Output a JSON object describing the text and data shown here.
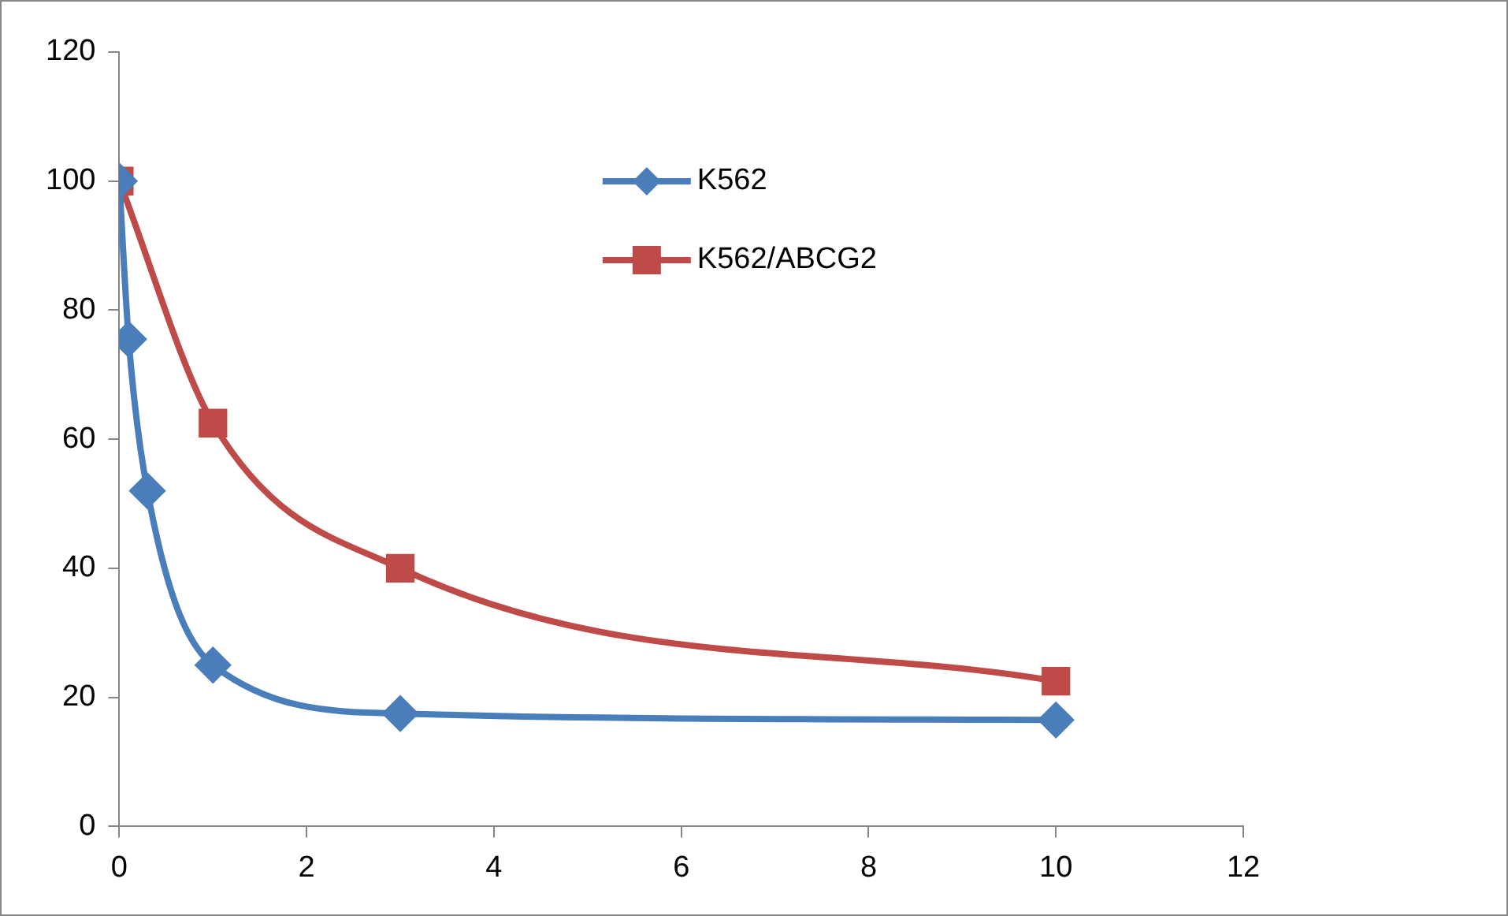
{
  "chart_data": {
    "type": "line",
    "xlim": [
      0,
      12
    ],
    "xticks": [
      0,
      2,
      4,
      6,
      8,
      10,
      12
    ],
    "ylim": [
      0,
      120
    ],
    "yticks": [
      0,
      20,
      40,
      60,
      80,
      100,
      120
    ],
    "grid": false,
    "legend": "top",
    "series": [
      {
        "name": "K562",
        "color": "#4a7ebb",
        "marker": "diamond",
        "x": [
          0,
          0.1,
          0.3,
          1,
          3,
          10
        ],
        "values": [
          100,
          75.5,
          52,
          25,
          17.5,
          16.5
        ]
      },
      {
        "name": "K562/ABCG2",
        "color": "#be4b48",
        "marker": "square",
        "x": [
          0,
          1,
          3,
          10
        ],
        "values": [
          100,
          62.5,
          40,
          22.5
        ]
      }
    ]
  }
}
